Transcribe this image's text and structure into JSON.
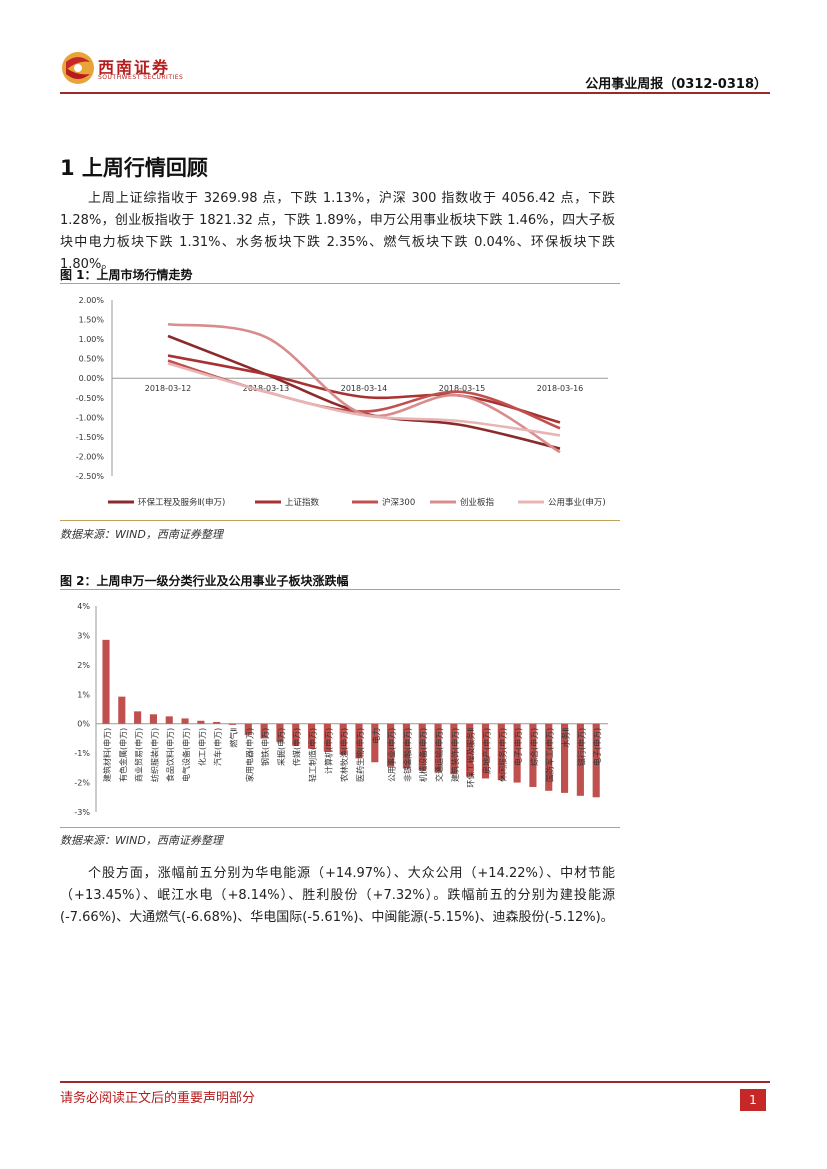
{
  "header": {
    "logo_cn": "西南证券",
    "logo_en": "SOUTHWEST SECURITIES",
    "title": "公用事业周报（0312-0318）"
  },
  "section": {
    "title": "1 上周行情回顾"
  },
  "paragraph1": "上周上证综指收于 3269.98 点，下跌 1.13%，沪深 300 指数收于 4056.42 点，下跌 1.28%，创业板指收于 1821.32 点，下跌 1.89%，申万公用事业板块下跌 1.46%，四大子板块中电力板块下跌 1.31%、水务板块下跌 2.35%、燃气板块下跌 0.04%、环保板块下跌 1.80%。",
  "figure1": {
    "title": "图 1：上周市场行情走势",
    "source": "数据来源：WIND，西南证券整理"
  },
  "figure2": {
    "title": "图 2：上周申万一级分类行业及公用事业子板块涨跌幅",
    "source": "数据来源：WIND，西南证券整理"
  },
  "paragraph2": "个股方面，涨幅前五分别为华电能源（+14.97%）、大众公用（+14.22%）、中材节能（+13.45%）、岷江水电（+8.14%）、胜利股份（+7.32%）。跌幅前五的分别为建投能源(-7.66%)、大通燃气(-6.68%)、华电国际(-5.61%)、中闽能源(-5.15%)、迪森股份(-5.12%)。",
  "footer": {
    "disclaimer": "请务必阅读正文后的重要声明部分",
    "page": "1"
  },
  "colors": {
    "brand": "#b71c1c",
    "rule": "#9b2a2a",
    "gold": "#c0a15a"
  },
  "chart_data": [
    {
      "type": "line",
      "x": [
        "2018-03-12",
        "2018-03-13",
        "2018-03-14",
        "2018-03-15",
        "2018-03-16"
      ],
      "ylim": [
        -2.5,
        2.0
      ],
      "yticks": [
        "2.00%",
        "1.50%",
        "1.00%",
        "0.50%",
        "0.00%",
        "-0.50%",
        "-1.00%",
        "-1.50%",
        "-2.00%",
        "-2.50%"
      ],
      "grid": false,
      "legend": "bottom",
      "series": [
        {
          "name": "环保工程及服务Ⅱ(申万)",
          "color": "#8b2a2a",
          "values": [
            1.08,
            0.1,
            -0.9,
            -1.2,
            -1.8
          ]
        },
        {
          "name": "上证指数",
          "color": "#a83232",
          "values": [
            0.58,
            0.1,
            -0.48,
            -0.45,
            -1.13
          ]
        },
        {
          "name": "沪深300",
          "color": "#c0504d",
          "values": [
            0.45,
            -0.35,
            -0.85,
            -0.35,
            -1.28
          ]
        },
        {
          "name": "创业板指",
          "color": "#d98c8c",
          "values": [
            1.38,
            1.05,
            -0.92,
            -0.45,
            -1.89
          ]
        },
        {
          "name": "公用事业(申万)",
          "color": "#e8b4b4",
          "values": [
            0.38,
            -0.35,
            -0.95,
            -1.1,
            -1.46
          ]
        }
      ]
    },
    {
      "type": "bar",
      "ylim": [
        -3,
        4
      ],
      "yticks": [
        "4%",
        "3%",
        "2%",
        "1%",
        "0%",
        "-1%",
        "-2%",
        "-3%"
      ],
      "color": "#c0504d",
      "categories": [
        "建筑材料(申万)",
        "有色金属(申万)",
        "商业贸易(申万)",
        "纺织服装(申万)",
        "食品饮料(申万)",
        "电气设备(申万)",
        "化工(申万)",
        "汽车(申万)",
        "燃气Ⅱ",
        "家用电器(申万)",
        "钢铁(申万)",
        "采掘(申万)",
        "传媒(申万)",
        "轻工制造(申万)",
        "计算机(申万)",
        "农林牧渔(申万)",
        "医药生物(申万)",
        "电力",
        "公用事业(申万)",
        "非银金融(申万)",
        "机械设备(申万)",
        "交通运输(申万)",
        "建筑装饰(申万)",
        "环保工程及服务Ⅱ",
        "房地产(申万)",
        "休闲服务(申万)",
        "电子(申万)",
        "综合(申万)",
        "国防军工(申万)",
        "水务Ⅱ",
        "银行(申万)",
        "电子(申万)"
      ],
      "values": [
        2.85,
        0.92,
        0.42,
        0.32,
        0.25,
        0.18,
        0.1,
        0.06,
        -0.04,
        -0.38,
        -0.5,
        -0.62,
        -0.75,
        -0.85,
        -0.95,
        -1.05,
        -1.18,
        -1.31,
        -1.46,
        -1.52,
        -1.6,
        -1.66,
        -1.72,
        -1.8,
        -1.86,
        -1.92,
        -2.0,
        -2.15,
        -2.28,
        -2.35,
        -2.45,
        -2.5
      ]
    }
  ]
}
